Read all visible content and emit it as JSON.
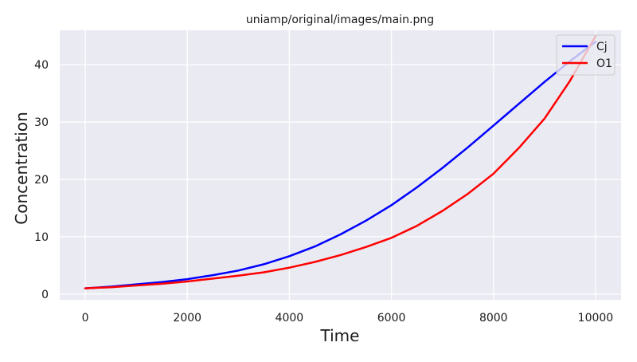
{
  "chart_data": {
    "type": "line",
    "title": "uniamp/original/images/main.png",
    "xlabel": "Time",
    "ylabel": "Concentration",
    "xlim": [
      -500,
      10500
    ],
    "ylim": [
      -1,
      46
    ],
    "x_ticks": [
      0,
      2000,
      4000,
      6000,
      8000,
      10000
    ],
    "y_ticks": [
      0,
      10,
      20,
      30,
      40
    ],
    "grid": true,
    "legend_position": "top-right",
    "series": [
      {
        "name": "Cj",
        "color": "#0000ff",
        "x": [
          0,
          500,
          1000,
          1500,
          2000,
          2500,
          3000,
          3500,
          4000,
          4500,
          5000,
          5500,
          6000,
          6500,
          7000,
          7500,
          8000,
          8500,
          9000,
          9500,
          10000
        ],
        "y": [
          1.0,
          1.3,
          1.7,
          2.1,
          2.6,
          3.3,
          4.1,
          5.2,
          6.6,
          8.3,
          10.4,
          12.8,
          15.5,
          18.6,
          22.0,
          25.6,
          29.4,
          33.2,
          37.0,
          40.6,
          44.0
        ]
      },
      {
        "name": "O1",
        "color": "#ff0000",
        "x": [
          0,
          500,
          1000,
          1500,
          2000,
          2500,
          3000,
          3500,
          4000,
          4500,
          5000,
          5500,
          6000,
          6500,
          7000,
          7500,
          8000,
          8500,
          9000,
          9500,
          10000
        ],
        "y": [
          1.0,
          1.2,
          1.5,
          1.8,
          2.2,
          2.7,
          3.2,
          3.8,
          4.6,
          5.6,
          6.8,
          8.2,
          9.8,
          11.9,
          14.5,
          17.5,
          21.0,
          25.5,
          30.6,
          37.2,
          45.0
        ]
      }
    ]
  }
}
